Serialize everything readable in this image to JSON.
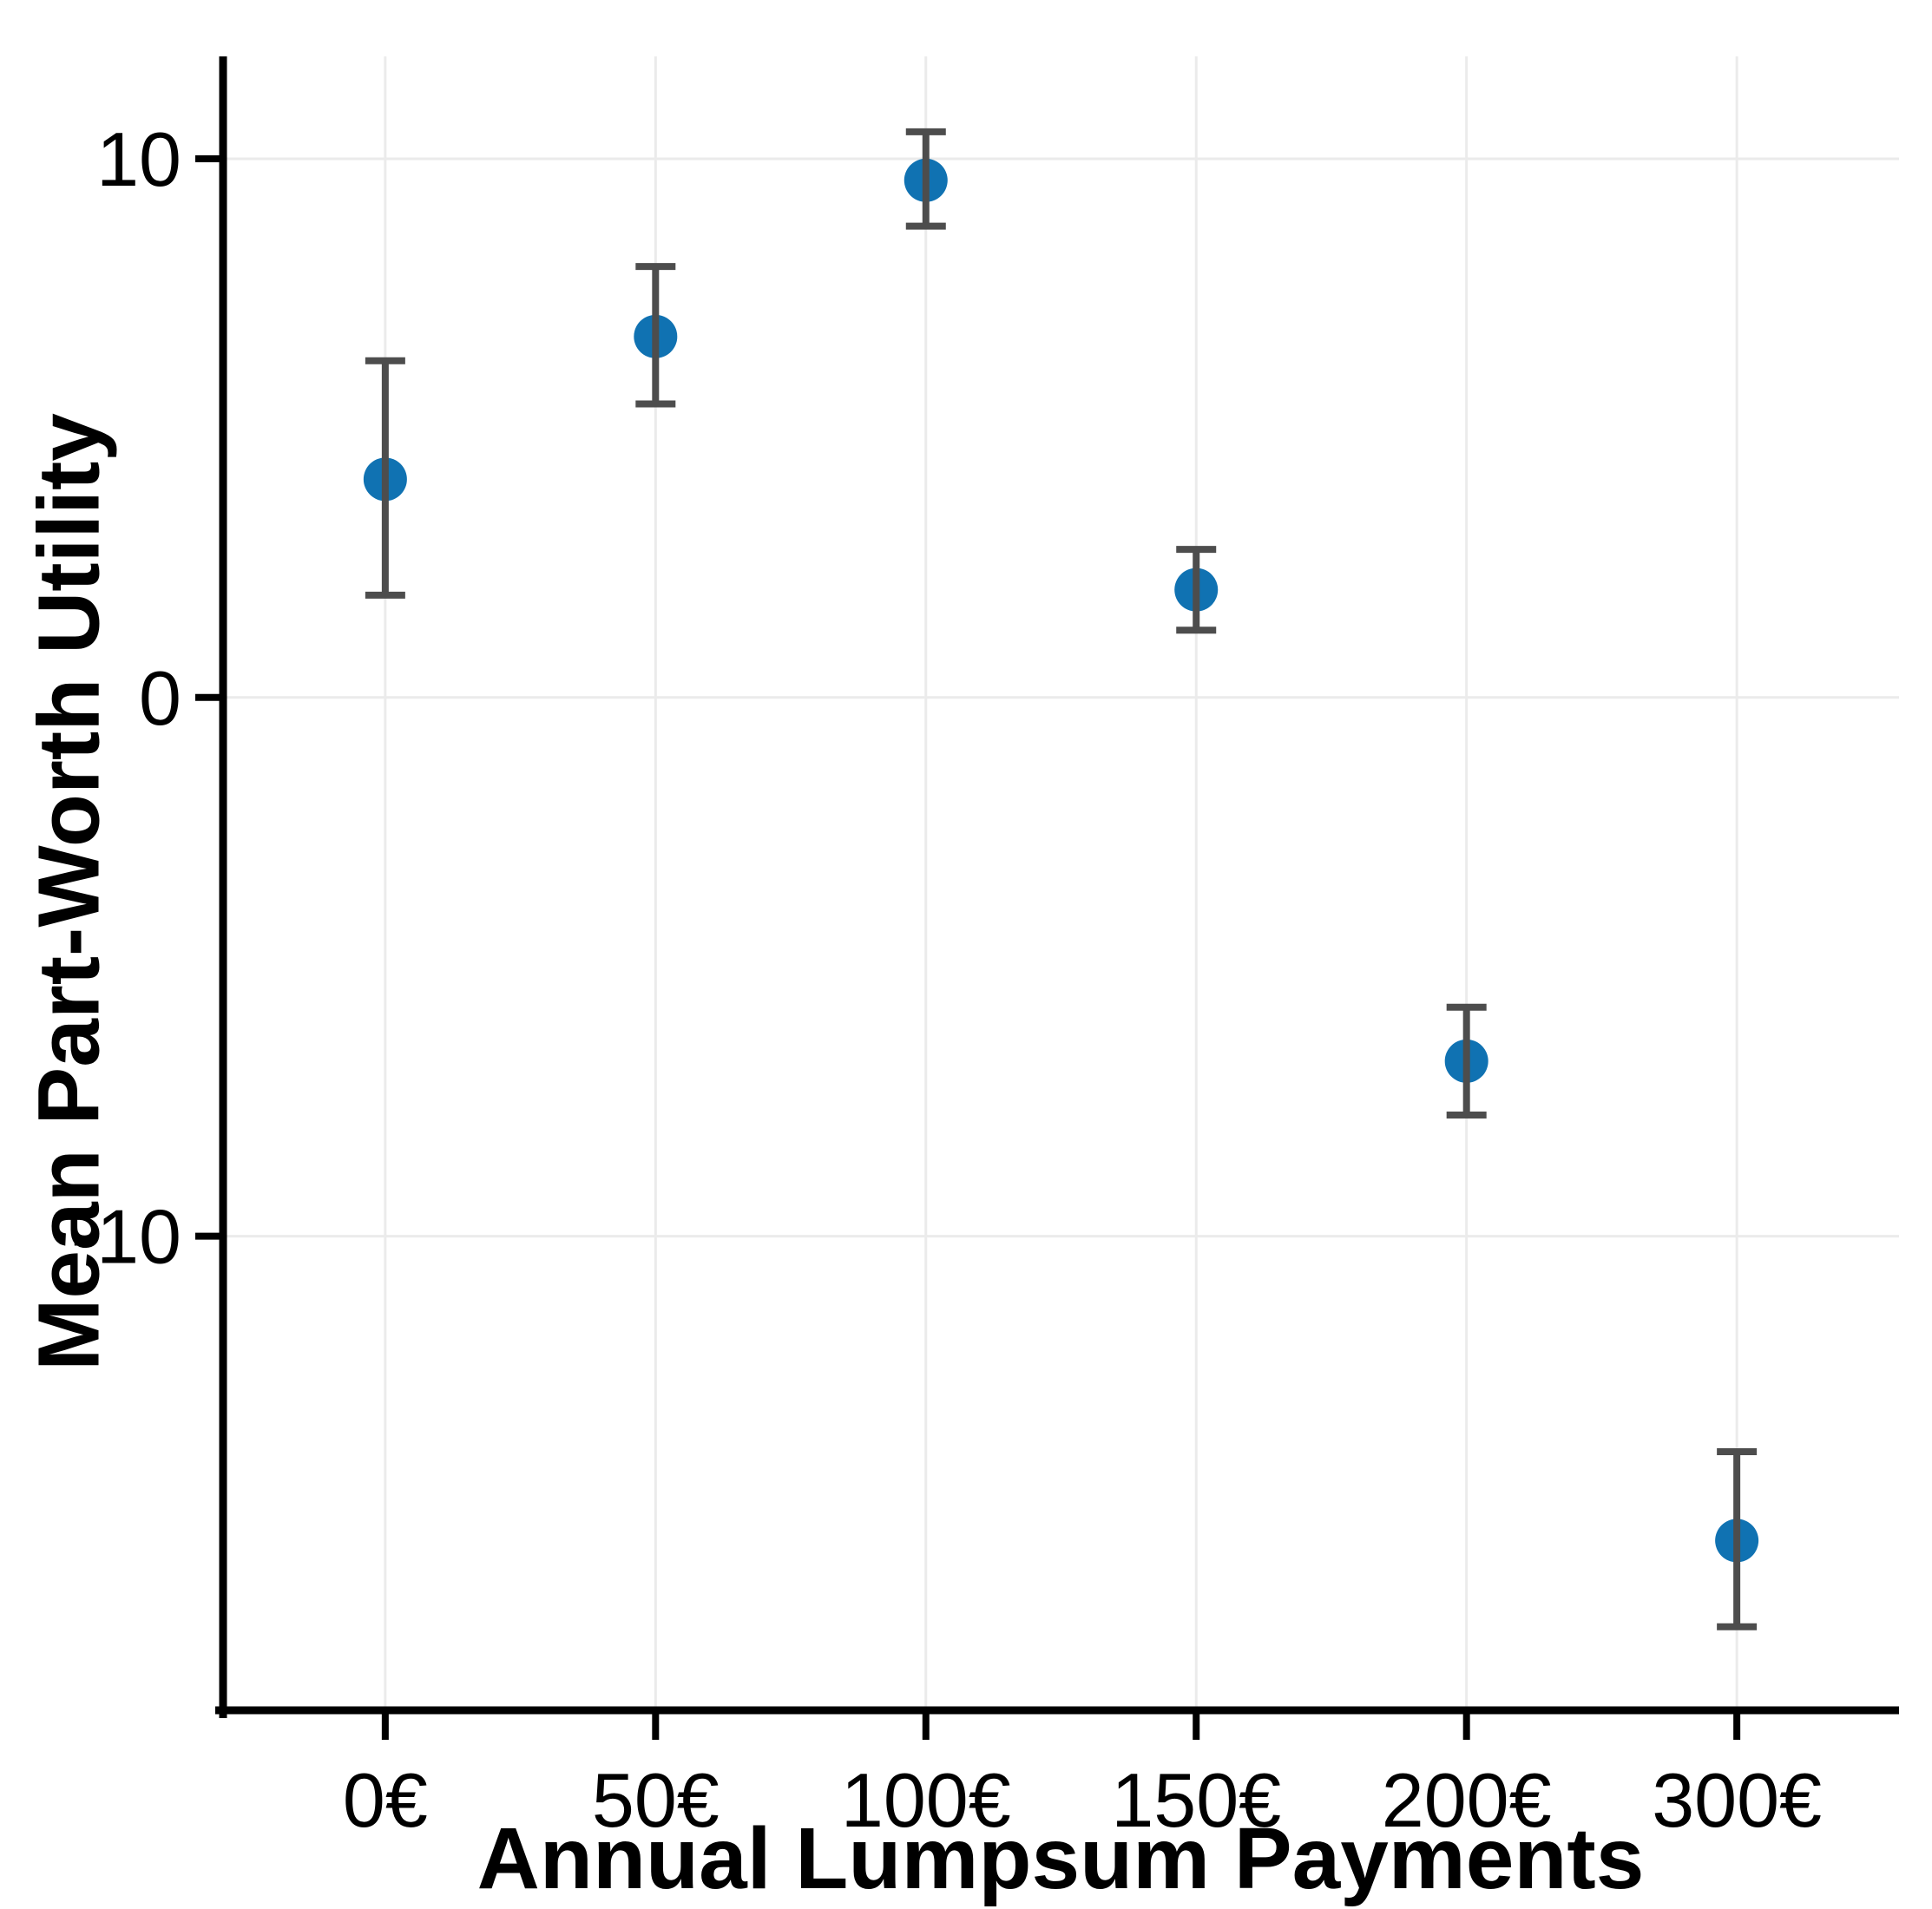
{
  "figure": {
    "background": "#ffffff"
  },
  "chart_data": {
    "type": "scatter",
    "title": "",
    "xlabel": "Annual Lumpsum Payments",
    "ylabel": "Mean Part-Worth Utility",
    "categories": [
      "0€",
      "50€",
      "100€",
      "150€",
      "200€",
      "300€"
    ],
    "series": [
      {
        "name": "Mean Part-Worth Utility",
        "means": [
          4.05,
          6.7,
          9.6,
          2.0,
          -6.75,
          -15.65
        ],
        "ci_low": [
          1.9,
          5.45,
          8.75,
          1.25,
          -7.75,
          -17.25
        ],
        "ci_high": [
          6.25,
          8.0,
          10.5,
          2.75,
          -5.75,
          -14.0
        ]
      }
    ],
    "error_bars": true,
    "y_ticks": [
      {
        "value": 10,
        "label": "10"
      },
      {
        "value": 0,
        "label": "0"
      },
      {
        "value": -10,
        "label": "-10"
      }
    ],
    "ylim": [
      -18.8,
      11.9
    ],
    "grid": "major_xy",
    "legend": "none",
    "colors": {
      "point": "#1072b2",
      "errorbar": "#4d4d4d",
      "gridline": "#ebebeb",
      "axis": "#000000",
      "text": "#000000"
    }
  }
}
